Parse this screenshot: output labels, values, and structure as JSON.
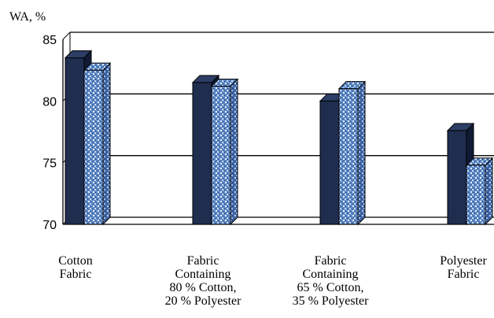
{
  "chart_data": {
    "type": "bar",
    "ylabel": "WA, %",
    "ylim": [
      70,
      85
    ],
    "yticks": [
      70,
      75,
      80,
      85
    ],
    "grid": true,
    "style": "3d",
    "categories": [
      [
        "Cotton",
        "Fabric"
      ],
      [
        "Fabric",
        "Containing",
        "80 % Cotton,",
        "20 % Polyester"
      ],
      [
        "Fabric",
        "Containing",
        "65 % Cotton,",
        "35 % Polyester"
      ],
      [
        "Polyester",
        "Fabric"
      ]
    ],
    "series": [
      {
        "values": [
          83.5,
          81.5,
          80.0,
          77.6
        ],
        "color": "#1f2d4f",
        "pattern": "solid"
      },
      {
        "values": [
          82.5,
          81.2,
          81.0,
          74.8
        ],
        "color": "#5b86c4",
        "pattern": "speckled"
      }
    ]
  }
}
